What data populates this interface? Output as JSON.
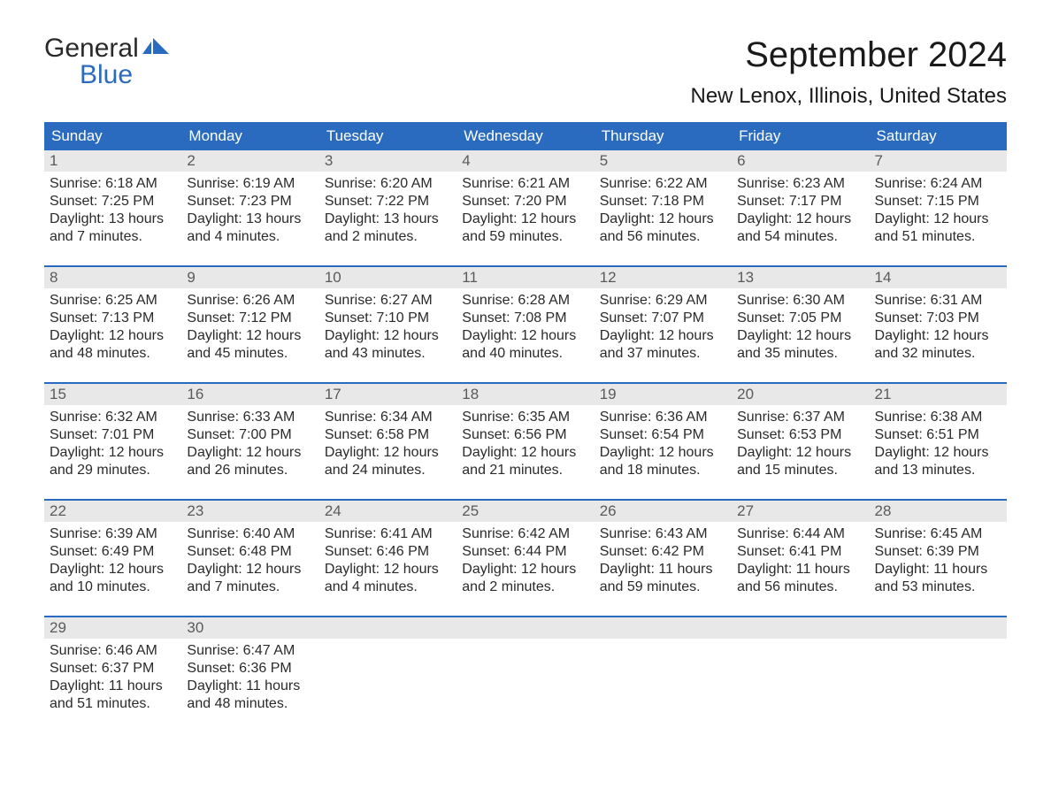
{
  "logo": {
    "line1": "General",
    "line2": "Blue",
    "accent_color": "#2b6bbf"
  },
  "title": "September 2024",
  "location": "New Lenox, Illinois, United States",
  "header_bg": "#2b6bbf",
  "header_text_color": "#ffffff",
  "day_number_bg": "#e8e8e8",
  "text_color": "#2a2a2a",
  "days_of_week": [
    "Sunday",
    "Monday",
    "Tuesday",
    "Wednesday",
    "Thursday",
    "Friday",
    "Saturday"
  ],
  "weeks": [
    [
      {
        "day": "1",
        "sunrise": "Sunrise: 6:18 AM",
        "sunset": "Sunset: 7:25 PM",
        "daylight": "Daylight: 13 hours and 7 minutes."
      },
      {
        "day": "2",
        "sunrise": "Sunrise: 6:19 AM",
        "sunset": "Sunset: 7:23 PM",
        "daylight": "Daylight: 13 hours and 4 minutes."
      },
      {
        "day": "3",
        "sunrise": "Sunrise: 6:20 AM",
        "sunset": "Sunset: 7:22 PM",
        "daylight": "Daylight: 13 hours and 2 minutes."
      },
      {
        "day": "4",
        "sunrise": "Sunrise: 6:21 AM",
        "sunset": "Sunset: 7:20 PM",
        "daylight": "Daylight: 12 hours and 59 minutes."
      },
      {
        "day": "5",
        "sunrise": "Sunrise: 6:22 AM",
        "sunset": "Sunset: 7:18 PM",
        "daylight": "Daylight: 12 hours and 56 minutes."
      },
      {
        "day": "6",
        "sunrise": "Sunrise: 6:23 AM",
        "sunset": "Sunset: 7:17 PM",
        "daylight": "Daylight: 12 hours and 54 minutes."
      },
      {
        "day": "7",
        "sunrise": "Sunrise: 6:24 AM",
        "sunset": "Sunset: 7:15 PM",
        "daylight": "Daylight: 12 hours and 51 minutes."
      }
    ],
    [
      {
        "day": "8",
        "sunrise": "Sunrise: 6:25 AM",
        "sunset": "Sunset: 7:13 PM",
        "daylight": "Daylight: 12 hours and 48 minutes."
      },
      {
        "day": "9",
        "sunrise": "Sunrise: 6:26 AM",
        "sunset": "Sunset: 7:12 PM",
        "daylight": "Daylight: 12 hours and 45 minutes."
      },
      {
        "day": "10",
        "sunrise": "Sunrise: 6:27 AM",
        "sunset": "Sunset: 7:10 PM",
        "daylight": "Daylight: 12 hours and 43 minutes."
      },
      {
        "day": "11",
        "sunrise": "Sunrise: 6:28 AM",
        "sunset": "Sunset: 7:08 PM",
        "daylight": "Daylight: 12 hours and 40 minutes."
      },
      {
        "day": "12",
        "sunrise": "Sunrise: 6:29 AM",
        "sunset": "Sunset: 7:07 PM",
        "daylight": "Daylight: 12 hours and 37 minutes."
      },
      {
        "day": "13",
        "sunrise": "Sunrise: 6:30 AM",
        "sunset": "Sunset: 7:05 PM",
        "daylight": "Daylight: 12 hours and 35 minutes."
      },
      {
        "day": "14",
        "sunrise": "Sunrise: 6:31 AM",
        "sunset": "Sunset: 7:03 PM",
        "daylight": "Daylight: 12 hours and 32 minutes."
      }
    ],
    [
      {
        "day": "15",
        "sunrise": "Sunrise: 6:32 AM",
        "sunset": "Sunset: 7:01 PM",
        "daylight": "Daylight: 12 hours and 29 minutes."
      },
      {
        "day": "16",
        "sunrise": "Sunrise: 6:33 AM",
        "sunset": "Sunset: 7:00 PM",
        "daylight": "Daylight: 12 hours and 26 minutes."
      },
      {
        "day": "17",
        "sunrise": "Sunrise: 6:34 AM",
        "sunset": "Sunset: 6:58 PM",
        "daylight": "Daylight: 12 hours and 24 minutes."
      },
      {
        "day": "18",
        "sunrise": "Sunrise: 6:35 AM",
        "sunset": "Sunset: 6:56 PM",
        "daylight": "Daylight: 12 hours and 21 minutes."
      },
      {
        "day": "19",
        "sunrise": "Sunrise: 6:36 AM",
        "sunset": "Sunset: 6:54 PM",
        "daylight": "Daylight: 12 hours and 18 minutes."
      },
      {
        "day": "20",
        "sunrise": "Sunrise: 6:37 AM",
        "sunset": "Sunset: 6:53 PM",
        "daylight": "Daylight: 12 hours and 15 minutes."
      },
      {
        "day": "21",
        "sunrise": "Sunrise: 6:38 AM",
        "sunset": "Sunset: 6:51 PM",
        "daylight": "Daylight: 12 hours and 13 minutes."
      }
    ],
    [
      {
        "day": "22",
        "sunrise": "Sunrise: 6:39 AM",
        "sunset": "Sunset: 6:49 PM",
        "daylight": "Daylight: 12 hours and 10 minutes."
      },
      {
        "day": "23",
        "sunrise": "Sunrise: 6:40 AM",
        "sunset": "Sunset: 6:48 PM",
        "daylight": "Daylight: 12 hours and 7 minutes."
      },
      {
        "day": "24",
        "sunrise": "Sunrise: 6:41 AM",
        "sunset": "Sunset: 6:46 PM",
        "daylight": "Daylight: 12 hours and 4 minutes."
      },
      {
        "day": "25",
        "sunrise": "Sunrise: 6:42 AM",
        "sunset": "Sunset: 6:44 PM",
        "daylight": "Daylight: 12 hours and 2 minutes."
      },
      {
        "day": "26",
        "sunrise": "Sunrise: 6:43 AM",
        "sunset": "Sunset: 6:42 PM",
        "daylight": "Daylight: 11 hours and 59 minutes."
      },
      {
        "day": "27",
        "sunrise": "Sunrise: 6:44 AM",
        "sunset": "Sunset: 6:41 PM",
        "daylight": "Daylight: 11 hours and 56 minutes."
      },
      {
        "day": "28",
        "sunrise": "Sunrise: 6:45 AM",
        "sunset": "Sunset: 6:39 PM",
        "daylight": "Daylight: 11 hours and 53 minutes."
      }
    ],
    [
      {
        "day": "29",
        "sunrise": "Sunrise: 6:46 AM",
        "sunset": "Sunset: 6:37 PM",
        "daylight": "Daylight: 11 hours and 51 minutes."
      },
      {
        "day": "30",
        "sunrise": "Sunrise: 6:47 AM",
        "sunset": "Sunset: 6:36 PM",
        "daylight": "Daylight: 11 hours and 48 minutes."
      },
      null,
      null,
      null,
      null,
      null
    ]
  ]
}
